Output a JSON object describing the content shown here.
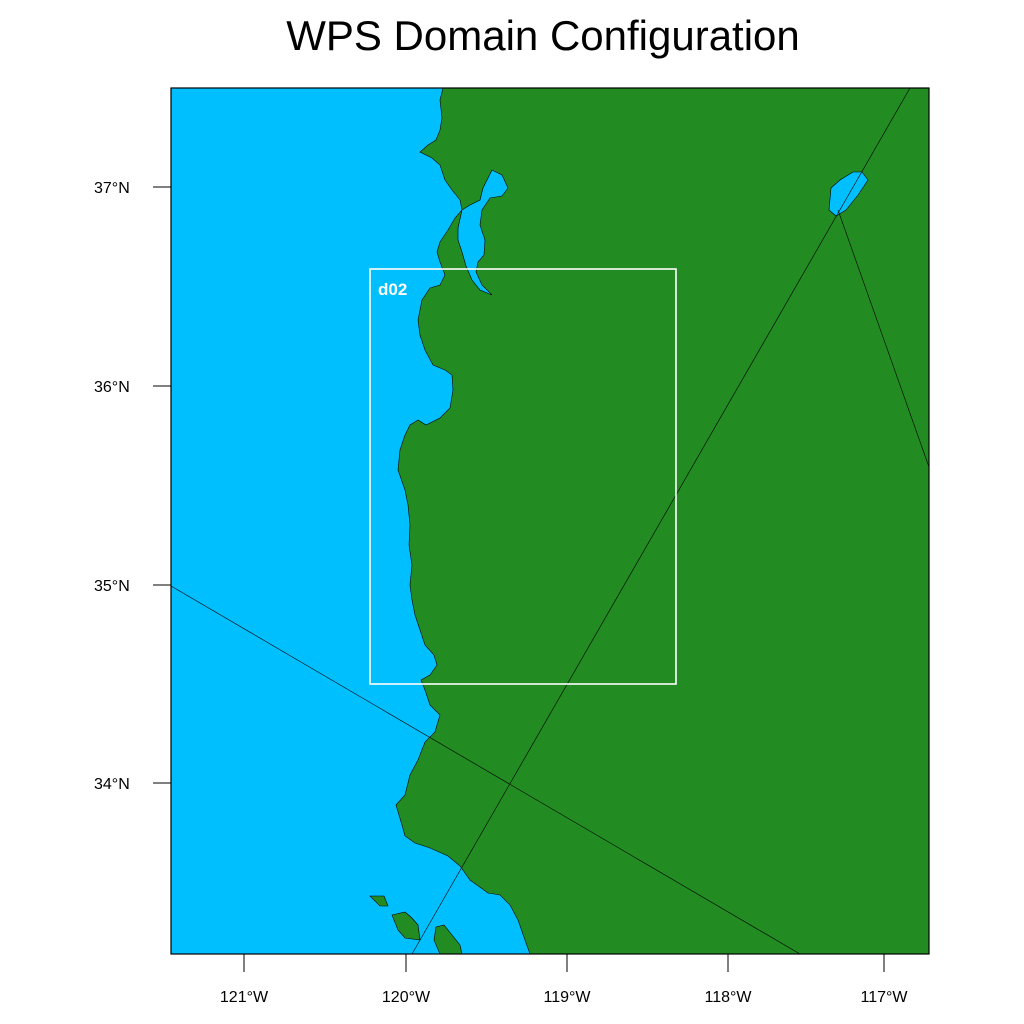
{
  "title": "WPS Domain Configuration",
  "colors": {
    "ocean": "#00BFFF",
    "land": "#228B22",
    "nest_box": "#ffffff",
    "border": "#000000"
  },
  "map": {
    "lon_range": [
      -121.45,
      -116.72
    ],
    "lat_range": [
      33.15,
      37.5
    ],
    "lat_ticks": [
      {
        "value": 37,
        "label": "37°N"
      },
      {
        "value": 36,
        "label": "36°N"
      },
      {
        "value": 35,
        "label": "35°N"
      },
      {
        "value": 34,
        "label": "34°N"
      }
    ],
    "lon_ticks": [
      {
        "value": -121,
        "label": "121°W"
      },
      {
        "value": -120,
        "label": "120°W"
      },
      {
        "value": -119,
        "label": "119°W"
      },
      {
        "value": -118,
        "label": "118°W"
      },
      {
        "value": -117,
        "label": "117°W"
      }
    ]
  },
  "nest": {
    "label": "d02"
  }
}
